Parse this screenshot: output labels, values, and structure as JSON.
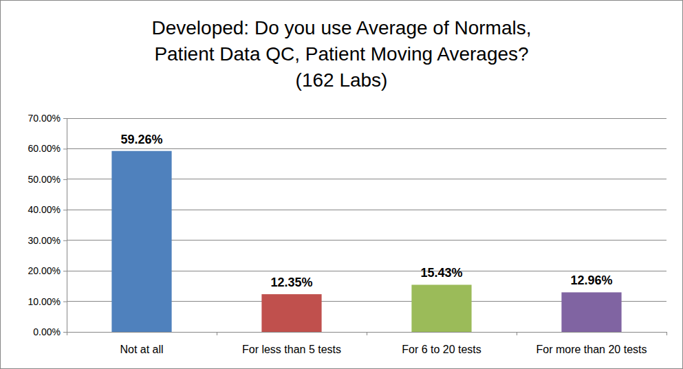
{
  "chart_data": {
    "type": "bar",
    "title": "Developed: Do you use Average of Normals,\nPatient Data QC, Patient Moving Averages?\n(162 Labs)",
    "categories": [
      "Not at all",
      "For less than 5 tests",
      "For 6 to 20 tests",
      "For more than 20 tests"
    ],
    "values": [
      59.26,
      12.35,
      15.43,
      12.96
    ],
    "value_labels": [
      "59.26%",
      "12.35%",
      "15.43%",
      "12.96%"
    ],
    "colors": [
      "#4f81bd",
      "#c0504d",
      "#9bbb59",
      "#8064a2"
    ],
    "ylim": [
      0,
      70
    ],
    "yticks": [
      {
        "value": 0,
        "label": "0.00%"
      },
      {
        "value": 10,
        "label": "10.00%"
      },
      {
        "value": 20,
        "label": "20.00%"
      },
      {
        "value": 30,
        "label": "30.00%"
      },
      {
        "value": 40,
        "label": "40.00%"
      },
      {
        "value": 50,
        "label": "50.00%"
      },
      {
        "value": 60,
        "label": "60.00%"
      },
      {
        "value": 70,
        "label": "70.00%"
      }
    ],
    "grid": true,
    "data_labels": true
  }
}
